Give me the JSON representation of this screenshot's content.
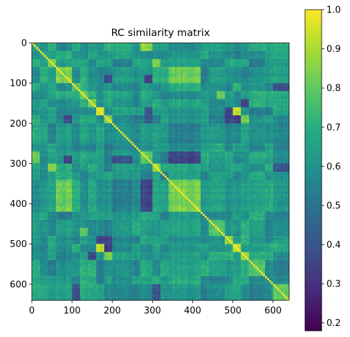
{
  "chart_data": {
    "type": "heatmap",
    "title": "RC similarity matrix",
    "xlabel": "",
    "ylabel": "",
    "n": 640,
    "xlim": [
      0,
      640
    ],
    "ylim": [
      640,
      0
    ],
    "x_ticks": [
      0,
      100,
      200,
      300,
      400,
      500,
      600
    ],
    "y_ticks": [
      0,
      100,
      200,
      300,
      400,
      500,
      600
    ],
    "colormap": "viridis",
    "color_range": [
      0.18,
      1.0
    ],
    "colorbar_ticks": [
      0.2,
      0.3,
      0.4,
      0.5,
      0.6,
      0.7,
      0.8,
      0.9,
      1.0
    ],
    "diagonal_value": 1.0,
    "background_value": 0.62,
    "block_boundaries": [
      0,
      20,
      40,
      60,
      100,
      120,
      140,
      160,
      180,
      200,
      250,
      270,
      300,
      320,
      340,
      420,
      440,
      480,
      500,
      520,
      540,
      580,
      600,
      640
    ],
    "block_values": [
      {
        "rows": [
          40,
          60
        ],
        "cols": [
          40,
          60
        ],
        "value": 0.86
      },
      {
        "rows": [
          60,
          100
        ],
        "cols": [
          60,
          100
        ],
        "value": 0.84
      },
      {
        "rows": [
          60,
          100
        ],
        "cols": [
          340,
          420
        ],
        "value": 0.82
      },
      {
        "rows": [
          340,
          420
        ],
        "cols": [
          60,
          100
        ],
        "value": 0.82
      },
      {
        "rows": [
          100,
          120
        ],
        "cols": [
          100,
          120
        ],
        "value": 0.76
      },
      {
        "rows": [
          120,
          140
        ],
        "cols": [
          120,
          140
        ],
        "value": 0.8
      },
      {
        "rows": [
          140,
          160
        ],
        "cols": [
          140,
          160
        ],
        "value": 0.84
      },
      {
        "rows": [
          160,
          180
        ],
        "cols": [
          160,
          180
        ],
        "value": 0.95
      },
      {
        "rows": [
          180,
          200
        ],
        "cols": [
          180,
          200
        ],
        "value": 0.86
      },
      {
        "rows": [
          300,
          320
        ],
        "cols": [
          40,
          60
        ],
        "value": 0.86
      },
      {
        "rows": [
          40,
          60
        ],
        "cols": [
          300,
          320
        ],
        "value": 0.86
      },
      {
        "rows": [
          300,
          320
        ],
        "cols": [
          300,
          320
        ],
        "value": 0.88
      },
      {
        "rows": [
          270,
          300
        ],
        "cols": [
          270,
          300
        ],
        "value": 0.8
      },
      {
        "rows": [
          0,
          20
        ],
        "cols": [
          270,
          300
        ],
        "value": 0.86
      },
      {
        "rows": [
          270,
          300
        ],
        "cols": [
          0,
          20
        ],
        "value": 0.8
      },
      {
        "rows": [
          340,
          420
        ],
        "cols": [
          340,
          420
        ],
        "value": 0.84
      },
      {
        "rows": [
          440,
          480
        ],
        "cols": [
          440,
          480
        ],
        "value": 0.8
      },
      {
        "rows": [
          120,
          140
        ],
        "cols": [
          460,
          480
        ],
        "value": 0.82
      },
      {
        "rows": [
          460,
          480
        ],
        "cols": [
          120,
          140
        ],
        "value": 0.8
      },
      {
        "rows": [
          480,
          500
        ],
        "cols": [
          480,
          500
        ],
        "value": 0.86
      },
      {
        "rows": [
          500,
          520
        ],
        "cols": [
          500,
          520
        ],
        "value": 0.95
      },
      {
        "rows": [
          160,
          180
        ],
        "cols": [
          500,
          520
        ],
        "value": 0.94
      },
      {
        "rows": [
          500,
          520
        ],
        "cols": [
          160,
          180
        ],
        "value": 0.94
      },
      {
        "rows": [
          520,
          540
        ],
        "cols": [
          520,
          540
        ],
        "value": 0.86
      },
      {
        "rows": [
          180,
          200
        ],
        "cols": [
          520,
          540
        ],
        "value": 0.82
      },
      {
        "rows": [
          520,
          540
        ],
        "cols": [
          180,
          200
        ],
        "value": 0.82
      },
      {
        "rows": [
          540,
          580
        ],
        "cols": [
          540,
          580
        ],
        "value": 0.78
      },
      {
        "rows": [
          600,
          640
        ],
        "cols": [
          600,
          640
        ],
        "value": 0.8
      },
      {
        "rows": [
          80,
          100
        ],
        "cols": [
          180,
          200
        ],
        "value": 0.36
      },
      {
        "rows": [
          180,
          200
        ],
        "cols": [
          80,
          100
        ],
        "value": 0.36
      },
      {
        "rows": [
          80,
          100
        ],
        "cols": [
          280,
          300
        ],
        "value": 0.34
      },
      {
        "rows": [
          280,
          300
        ],
        "cols": [
          80,
          100
        ],
        "value": 0.34
      },
      {
        "rows": [
          160,
          200
        ],
        "cols": [
          280,
          300
        ],
        "value": 0.42
      },
      {
        "rows": [
          280,
          300
        ],
        "cols": [
          200,
          250
        ],
        "value": 0.4
      },
      {
        "rows": [
          270,
          300
        ],
        "cols": [
          340,
          420
        ],
        "value": 0.36
      },
      {
        "rows": [
          340,
          420
        ],
        "cols": [
          270,
          300
        ],
        "value": 0.36
      },
      {
        "rows": [
          160,
          200
        ],
        "cols": [
          480,
          520
        ],
        "value": 0.35
      },
      {
        "rows": [
          480,
          520
        ],
        "cols": [
          160,
          200
        ],
        "value": 0.35
      },
      {
        "rows": [
          140,
          160
        ],
        "cols": [
          520,
          540
        ],
        "value": 0.34
      },
      {
        "rows": [
          520,
          540
        ],
        "cols": [
          140,
          160
        ],
        "value": 0.34
      },
      {
        "rows": [
          180,
          200
        ],
        "cols": [
          500,
          520
        ],
        "value": 0.3
      },
      {
        "rows": [
          500,
          520
        ],
        "cols": [
          180,
          200
        ],
        "value": 0.3
      },
      {
        "rows": [
          100,
          120
        ],
        "cols": [
          600,
          640
        ],
        "value": 0.38
      },
      {
        "rows": [
          600,
          640
        ],
        "cols": [
          100,
          120
        ],
        "value": 0.38
      },
      {
        "rows": [
          300,
          320
        ],
        "cols": [
          600,
          640
        ],
        "value": 0.4
      },
      {
        "rows": [
          600,
          640
        ],
        "cols": [
          300,
          320
        ],
        "value": 0.4
      }
    ]
  }
}
